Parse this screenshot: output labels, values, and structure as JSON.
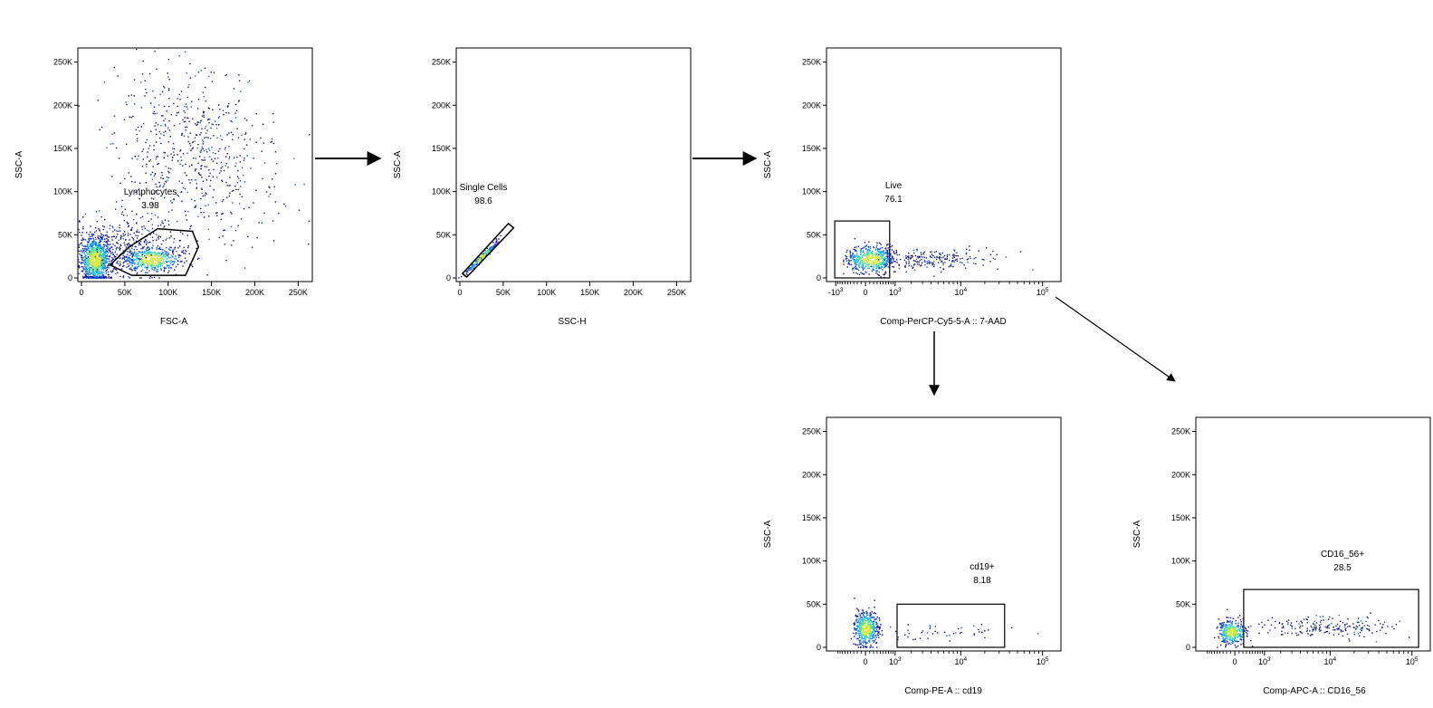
{
  "chart_data": [
    {
      "id": "p1",
      "type": "scatter",
      "xlabel": "FSC-A",
      "ylabel": "SSC-A",
      "xscale": "linear",
      "xlim": [
        0,
        262144
      ],
      "ylim": [
        0,
        262144
      ],
      "xticks": [
        {
          "v": 0,
          "label": "0"
        },
        {
          "v": 50000,
          "label": "50K"
        },
        {
          "v": 100000,
          "label": "100K"
        },
        {
          "v": 150000,
          "label": "150K"
        },
        {
          "v": 200000,
          "label": "200K"
        },
        {
          "v": 250000,
          "label": "250K"
        }
      ],
      "yticks": [
        {
          "v": 0,
          "label": "0"
        },
        {
          "v": 50000,
          "label": "50K"
        },
        {
          "v": 100000,
          "label": "100K"
        },
        {
          "v": 150000,
          "label": "150K"
        },
        {
          "v": 200000,
          "label": "200K"
        },
        {
          "v": 250000,
          "label": "250K"
        }
      ],
      "gate": {
        "name": "Lymphocytes",
        "value": "3.98",
        "shape": "polygon",
        "points": [
          [
            33000,
            15000
          ],
          [
            55000,
            36000
          ],
          [
            88000,
            57000
          ],
          [
            128000,
            54000
          ],
          [
            135000,
            36000
          ],
          [
            120000,
            3000
          ],
          [
            58000,
            3000
          ]
        ]
      },
      "clusters": [
        {
          "cx": 15000,
          "cy": 22000,
          "sx": 9000,
          "sy": 14000,
          "n": 1000,
          "dense": true
        },
        {
          "cx": 80000,
          "cy": 22000,
          "sx": 17000,
          "sy": 8000,
          "n": 520,
          "dense": true
        },
        {
          "cx": 50000,
          "cy": 40000,
          "sx": 30000,
          "sy": 20000,
          "n": 320,
          "dense": false
        },
        {
          "cx": 120000,
          "cy": 160000,
          "sx": 42000,
          "sy": 45000,
          "n": 480,
          "dense": false
        },
        {
          "cx": 160000,
          "cy": 100000,
          "sx": 45000,
          "sy": 35000,
          "n": 150,
          "dense": false
        }
      ]
    },
    {
      "id": "p2",
      "type": "scatter",
      "xlabel": "SSC-H",
      "ylabel": "SSC-A",
      "xscale": "linear",
      "xlim": [
        0,
        262144
      ],
      "ylim": [
        0,
        262144
      ],
      "xticks": [
        {
          "v": 0,
          "label": "0"
        },
        {
          "v": 50000,
          "label": "50K"
        },
        {
          "v": 100000,
          "label": "100K"
        },
        {
          "v": 150000,
          "label": "150K"
        },
        {
          "v": 200000,
          "label": "200K"
        },
        {
          "v": 250000,
          "label": "250K"
        }
      ],
      "yticks": [
        {
          "v": 0,
          "label": "0"
        },
        {
          "v": 50000,
          "label": "50K"
        },
        {
          "v": 100000,
          "label": "100K"
        },
        {
          "v": 150000,
          "label": "150K"
        },
        {
          "v": 200000,
          "label": "200K"
        },
        {
          "v": 250000,
          "label": "250K"
        }
      ],
      "gate": {
        "name": "Single Cells",
        "value": "98.6",
        "shape": "polygon",
        "points": [
          [
            3000,
            5000
          ],
          [
            8000,
            1000
          ],
          [
            62000,
            58000
          ],
          [
            56000,
            63000
          ]
        ]
      },
      "clusters": [
        {
          "cx": 25000,
          "cy": 25000,
          "sx": 9000,
          "sy": 9000,
          "n": 260,
          "dense": true,
          "diagonal": true
        }
      ]
    },
    {
      "id": "p3",
      "type": "scatter",
      "xlabel": "Comp-PerCP-Cy5-5-A :: 7-AAD",
      "ylabel": "SSC-A",
      "xscale": "logicle",
      "xlim": [
        -1300,
        150000
      ],
      "ylim": [
        0,
        262144
      ],
      "xticks": [
        {
          "v": -1000,
          "label": "-10",
          "exp": "3"
        },
        {
          "v": 0,
          "label": "0"
        },
        {
          "v": 1000,
          "label": "10",
          "exp": "3"
        },
        {
          "v": 10000,
          "label": "10",
          "exp": "4"
        },
        {
          "v": 100000,
          "label": "10",
          "exp": "5"
        }
      ],
      "yticks": [
        {
          "v": 0,
          "label": "0"
        },
        {
          "v": 50000,
          "label": "50K"
        },
        {
          "v": 100000,
          "label": "100K"
        },
        {
          "v": 150000,
          "label": "150K"
        },
        {
          "v": 200000,
          "label": "200K"
        },
        {
          "v": 250000,
          "label": "250K"
        }
      ],
      "gate": {
        "name": "Live",
        "value": "76.1",
        "shape": "rect",
        "x": [
          -1050,
          750
        ],
        "y": [
          0,
          66000
        ]
      },
      "clusters": [
        {
          "cx": 150,
          "cy": 22000,
          "sx": 350,
          "sy": 8000,
          "n": 520,
          "dense": true
        },
        {
          "cx": 4000,
          "cy": 23000,
          "sx": 3000,
          "sy": 6000,
          "n": 220,
          "dense": false,
          "logspread": true
        }
      ]
    },
    {
      "id": "p4",
      "type": "scatter",
      "xlabel": "Comp-PE-A :: cd19",
      "ylabel": "SSC-A",
      "xscale": "logicle",
      "xlim": [
        -1300,
        150000
      ],
      "ylim": [
        0,
        262144
      ],
      "xticks": [
        {
          "v": 0,
          "label": "0"
        },
        {
          "v": 1000,
          "label": "10",
          "exp": "3"
        },
        {
          "v": 10000,
          "label": "10",
          "exp": "4"
        },
        {
          "v": 100000,
          "label": "10",
          "exp": "5"
        }
      ],
      "yticks": [
        {
          "v": 0,
          "label": "0"
        },
        {
          "v": 50000,
          "label": "50K"
        },
        {
          "v": 100000,
          "label": "100K"
        },
        {
          "v": 150000,
          "label": "150K"
        },
        {
          "v": 200000,
          "label": "200K"
        },
        {
          "v": 250000,
          "label": "250K"
        }
      ],
      "gate": {
        "name": "cd19+",
        "value": "8.18",
        "shape": "rect",
        "x": [
          1100,
          35000
        ],
        "y": [
          0,
          50000
        ]
      },
      "clusters": [
        {
          "cx": 0,
          "cy": 22000,
          "sx": 150,
          "sy": 10000,
          "n": 480,
          "dense": true
        },
        {
          "cx": 6000,
          "cy": 18000,
          "sx": 2500,
          "sy": 5000,
          "n": 45,
          "dense": false,
          "logspread": true
        }
      ]
    },
    {
      "id": "p5",
      "type": "scatter",
      "xlabel": "Comp-APC-A :: CD16_56",
      "ylabel": "SSC-A",
      "xscale": "logicle",
      "xlim": [
        -1300,
        150000
      ],
      "ylim": [
        0,
        262144
      ],
      "xticks": [
        {
          "v": 0,
          "label": "0"
        },
        {
          "v": 1000,
          "label": "10",
          "exp": "3"
        },
        {
          "v": 10000,
          "label": "10",
          "exp": "4"
        },
        {
          "v": 100000,
          "label": "10",
          "exp": "5"
        }
      ],
      "yticks": [
        {
          "v": 0,
          "label": "0"
        },
        {
          "v": 50000,
          "label": "50K"
        },
        {
          "v": 100000,
          "label": "100K"
        },
        {
          "v": 150000,
          "label": "150K"
        },
        {
          "v": 200000,
          "label": "200K"
        },
        {
          "v": 250000,
          "label": "250K"
        }
      ],
      "gate": {
        "name": "CD16_56+",
        "value": "28.5",
        "shape": "rect",
        "x": [
          220,
          120000
        ],
        "y": [
          0,
          67000
        ]
      },
      "clusters": [
        {
          "cx": -100,
          "cy": 18000,
          "sx": 180,
          "sy": 7000,
          "n": 350,
          "dense": true
        },
        {
          "cx": 8000,
          "cy": 24000,
          "sx": 15000,
          "sy": 6000,
          "n": 200,
          "dense": false,
          "logspread": true
        }
      ]
    }
  ]
}
